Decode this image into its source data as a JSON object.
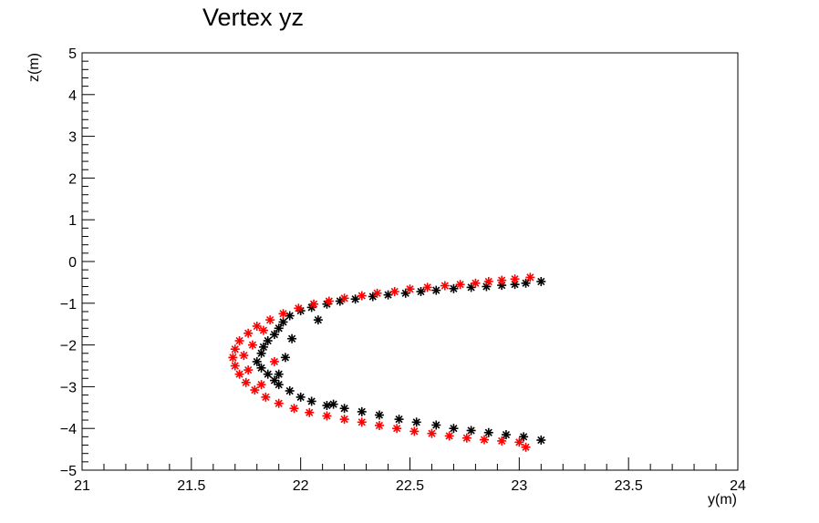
{
  "chart_data": {
    "type": "scatter",
    "title": "Vertex yz",
    "xlabel": "y(m)",
    "ylabel": "z(m)",
    "xlim": [
      21,
      24
    ],
    "ylim": [
      -5,
      5
    ],
    "xticks": [
      "21",
      "21.5",
      "22",
      "22.5",
      "23",
      "23.5",
      "24"
    ],
    "yticks": [
      "−5",
      "−4",
      "−3",
      "−2",
      "−1",
      "0",
      "1",
      "2",
      "3",
      "4",
      "5"
    ],
    "marker": "asterisk",
    "grid": false,
    "legend": "none",
    "series": [
      {
        "color": "#000000",
        "points": [
          [
            23.1,
            -0.48
          ],
          [
            23.03,
            -0.52
          ],
          [
            22.98,
            -0.55
          ],
          [
            22.92,
            -0.57
          ],
          [
            22.85,
            -0.6
          ],
          [
            22.78,
            -0.62
          ],
          [
            22.7,
            -0.65
          ],
          [
            22.62,
            -0.69
          ],
          [
            22.55,
            -0.72
          ],
          [
            22.48,
            -0.76
          ],
          [
            22.4,
            -0.8
          ],
          [
            22.33,
            -0.84
          ],
          [
            22.25,
            -0.9
          ],
          [
            22.18,
            -0.95
          ],
          [
            22.12,
            -1.02
          ],
          [
            22.05,
            -1.1
          ],
          [
            22.0,
            -1.18
          ],
          [
            21.95,
            -1.3
          ],
          [
            21.92,
            -1.45
          ],
          [
            21.9,
            -1.6
          ],
          [
            21.88,
            -1.75
          ],
          [
            21.85,
            -1.9
          ],
          [
            21.83,
            -2.05
          ],
          [
            21.82,
            -2.2
          ],
          [
            21.8,
            -2.4
          ],
          [
            21.82,
            -2.55
          ],
          [
            21.85,
            -2.7
          ],
          [
            21.88,
            -2.85
          ],
          [
            21.9,
            -2.95
          ],
          [
            21.95,
            -3.1
          ],
          [
            22.0,
            -3.25
          ],
          [
            22.05,
            -3.35
          ],
          [
            22.12,
            -3.45
          ],
          [
            22.2,
            -3.52
          ],
          [
            22.28,
            -3.6
          ],
          [
            22.36,
            -3.68
          ],
          [
            22.45,
            -3.78
          ],
          [
            22.53,
            -3.85
          ],
          [
            22.62,
            -3.92
          ],
          [
            22.7,
            -4.0
          ],
          [
            22.78,
            -4.05
          ],
          [
            22.86,
            -4.1
          ],
          [
            22.94,
            -4.15
          ],
          [
            23.02,
            -4.2
          ],
          [
            23.1,
            -4.28
          ],
          [
            21.93,
            -2.3
          ],
          [
            21.9,
            -2.7
          ],
          [
            21.96,
            -1.85
          ],
          [
            22.08,
            -1.4
          ],
          [
            22.15,
            -3.42
          ]
        ]
      },
      {
        "color": "#ff0000",
        "points": [
          [
            23.05,
            -0.38
          ],
          [
            22.98,
            -0.42
          ],
          [
            22.92,
            -0.45
          ],
          [
            22.86,
            -0.48
          ],
          [
            22.8,
            -0.52
          ],
          [
            22.73,
            -0.55
          ],
          [
            22.66,
            -0.58
          ],
          [
            22.58,
            -0.62
          ],
          [
            22.5,
            -0.66
          ],
          [
            22.43,
            -0.72
          ],
          [
            22.35,
            -0.76
          ],
          [
            22.28,
            -0.82
          ],
          [
            22.2,
            -0.88
          ],
          [
            22.13,
            -0.95
          ],
          [
            22.06,
            -1.02
          ],
          [
            21.99,
            -1.12
          ],
          [
            21.92,
            -1.25
          ],
          [
            21.86,
            -1.4
          ],
          [
            21.8,
            -1.55
          ],
          [
            21.76,
            -1.72
          ],
          [
            21.72,
            -1.9
          ],
          [
            21.7,
            -2.1
          ],
          [
            21.69,
            -2.3
          ],
          [
            21.7,
            -2.5
          ],
          [
            21.72,
            -2.7
          ],
          [
            21.75,
            -2.9
          ],
          [
            21.79,
            -3.08
          ],
          [
            21.84,
            -3.25
          ],
          [
            21.9,
            -3.4
          ],
          [
            21.97,
            -3.52
          ],
          [
            22.04,
            -3.62
          ],
          [
            22.12,
            -3.7
          ],
          [
            22.2,
            -3.78
          ],
          [
            22.28,
            -3.85
          ],
          [
            22.36,
            -3.93
          ],
          [
            22.44,
            -4.0
          ],
          [
            22.52,
            -4.07
          ],
          [
            22.6,
            -4.12
          ],
          [
            22.68,
            -4.18
          ],
          [
            22.76,
            -4.23
          ],
          [
            22.84,
            -4.27
          ],
          [
            22.92,
            -4.3
          ],
          [
            23.0,
            -4.33
          ],
          [
            23.03,
            -4.45
          ],
          [
            21.78,
            -2.0
          ],
          [
            21.76,
            -2.6
          ],
          [
            21.83,
            -1.65
          ],
          [
            21.82,
            -2.95
          ],
          [
            21.88,
            -2.4
          ],
          [
            21.74,
            -2.25
          ]
        ]
      }
    ]
  }
}
